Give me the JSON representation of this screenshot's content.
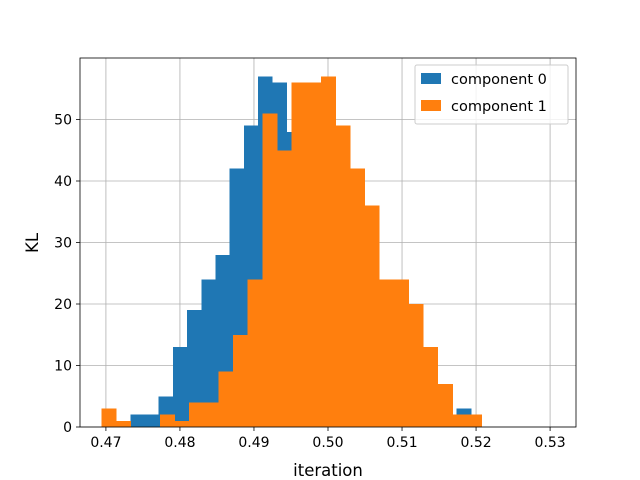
{
  "chart_data": {
    "type": "bar",
    "subtype": "histogram",
    "title": "",
    "xlabel": "iteration",
    "ylabel": "KL",
    "xlim": [
      0.4665,
      0.5335
    ],
    "ylim": [
      0,
      60
    ],
    "xticks": [
      0.47,
      0.48,
      0.49,
      0.5,
      0.51,
      0.52,
      0.53
    ],
    "xtick_labels": [
      "0.47",
      "0.48",
      "0.49",
      "0.50",
      "0.51",
      "0.52",
      "0.53"
    ],
    "yticks": [
      0,
      10,
      20,
      30,
      40,
      50
    ],
    "ytick_labels": [
      "0",
      "10",
      "20",
      "30",
      "40",
      "50"
    ],
    "grid": true,
    "legend_position": "top-right",
    "series": [
      {
        "name": "component 0",
        "color": "#1f77b4",
        "bin_start": 0.4733,
        "bin_width": 0.001917,
        "counts": [
          2,
          2,
          5,
          13,
          19,
          24,
          28,
          42,
          49,
          57,
          56,
          48,
          36,
          24,
          17,
          11,
          10,
          7,
          5,
          3,
          2,
          1,
          1,
          3
        ]
      },
      {
        "name": "component 1",
        "color": "#ff7f0e",
        "bin_start": 0.4694,
        "bin_width": 0.001975,
        "counts": [
          3,
          1,
          0,
          0,
          2,
          1,
          4,
          4,
          9,
          15,
          24,
          51,
          45,
          56,
          56,
          57,
          49,
          42,
          36,
          24,
          24,
          20,
          13,
          7,
          2,
          2
        ]
      }
    ]
  }
}
